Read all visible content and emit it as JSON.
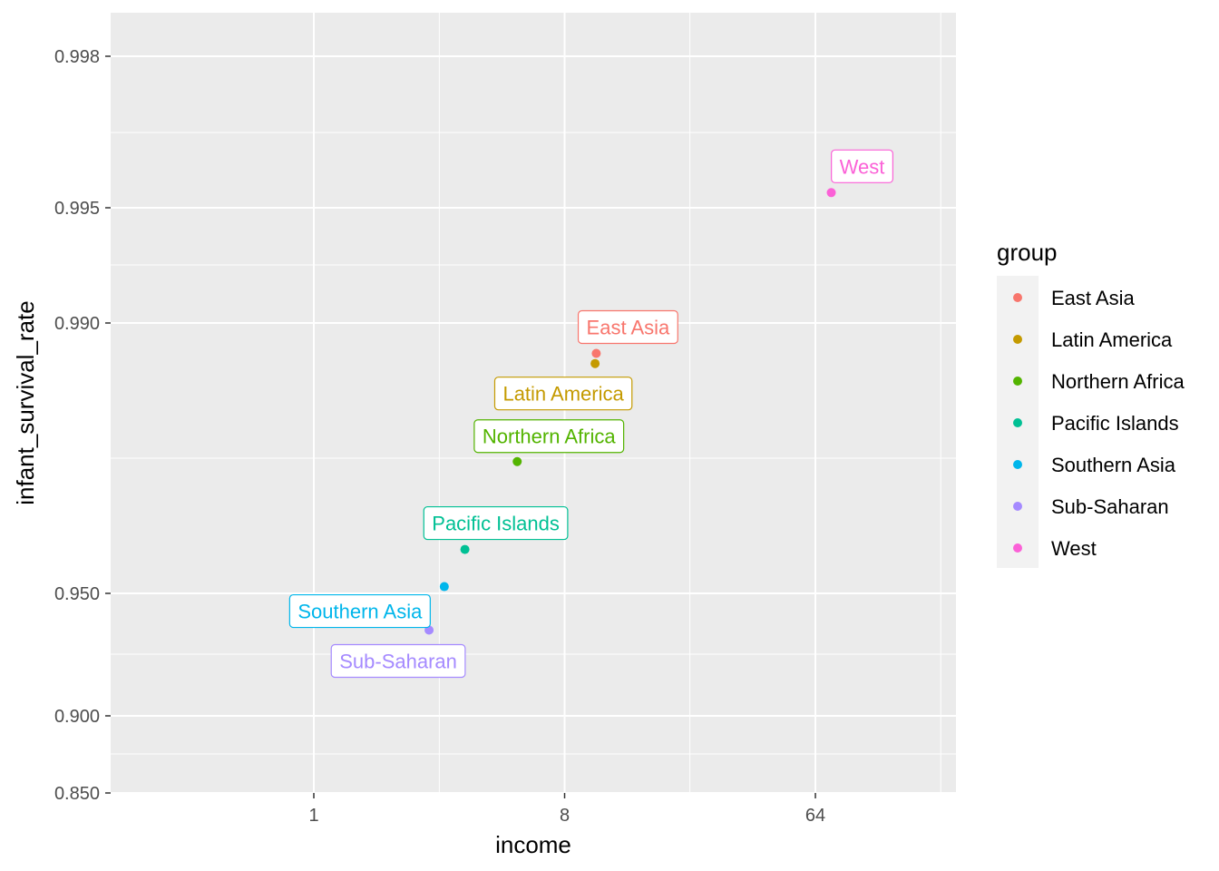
{
  "chart_data": {
    "type": "scatter",
    "title": "",
    "xlabel": "income",
    "ylabel": "infant_survival_rate",
    "x_scale": "log2",
    "y_scale": "custom (logit-like)",
    "x_ticks": [
      1,
      8,
      64
    ],
    "x_tick_labels": [
      "1",
      "8",
      "64"
    ],
    "y_ticks": [
      0.85,
      0.9,
      0.95,
      0.99,
      0.995,
      0.998
    ],
    "y_tick_labels": [
      "0.850",
      "0.900",
      "0.950",
      "0.990",
      "0.995",
      "0.998"
    ],
    "grid": true,
    "legend": {
      "title": "group",
      "placement": "right",
      "items": [
        "East Asia",
        "Latin America",
        "Northern Africa",
        "Pacific Islands",
        "Southern Asia",
        "Sub-Saharan",
        "West"
      ]
    },
    "points": [
      {
        "group": "East Asia",
        "label": "East Asia",
        "x": 10.4,
        "y": 0.9855,
        "color": "#F8766D"
      },
      {
        "group": "Latin America",
        "label": "Latin America",
        "x": 10.3,
        "y": 0.984,
        "color": "#C49A00"
      },
      {
        "group": "Northern Africa",
        "label": "Northern Africa",
        "x": 5.4,
        "y": 0.9695,
        "color": "#53B400"
      },
      {
        "group": "Pacific Islands",
        "label": "Pacific Islands",
        "x": 3.5,
        "y": 0.9565,
        "color": "#00C094"
      },
      {
        "group": "Southern Asia",
        "label": "Southern Asia",
        "x": 2.95,
        "y": 0.951,
        "color": "#00B6EB"
      },
      {
        "group": "Sub-Saharan",
        "label": "Sub-Saharan",
        "x": 2.6,
        "y": 0.935,
        "color": "#A58AFF"
      },
      {
        "group": "West",
        "label": "West",
        "x": 73,
        "y": 0.9953,
        "color": "#FB61D7"
      }
    ]
  }
}
